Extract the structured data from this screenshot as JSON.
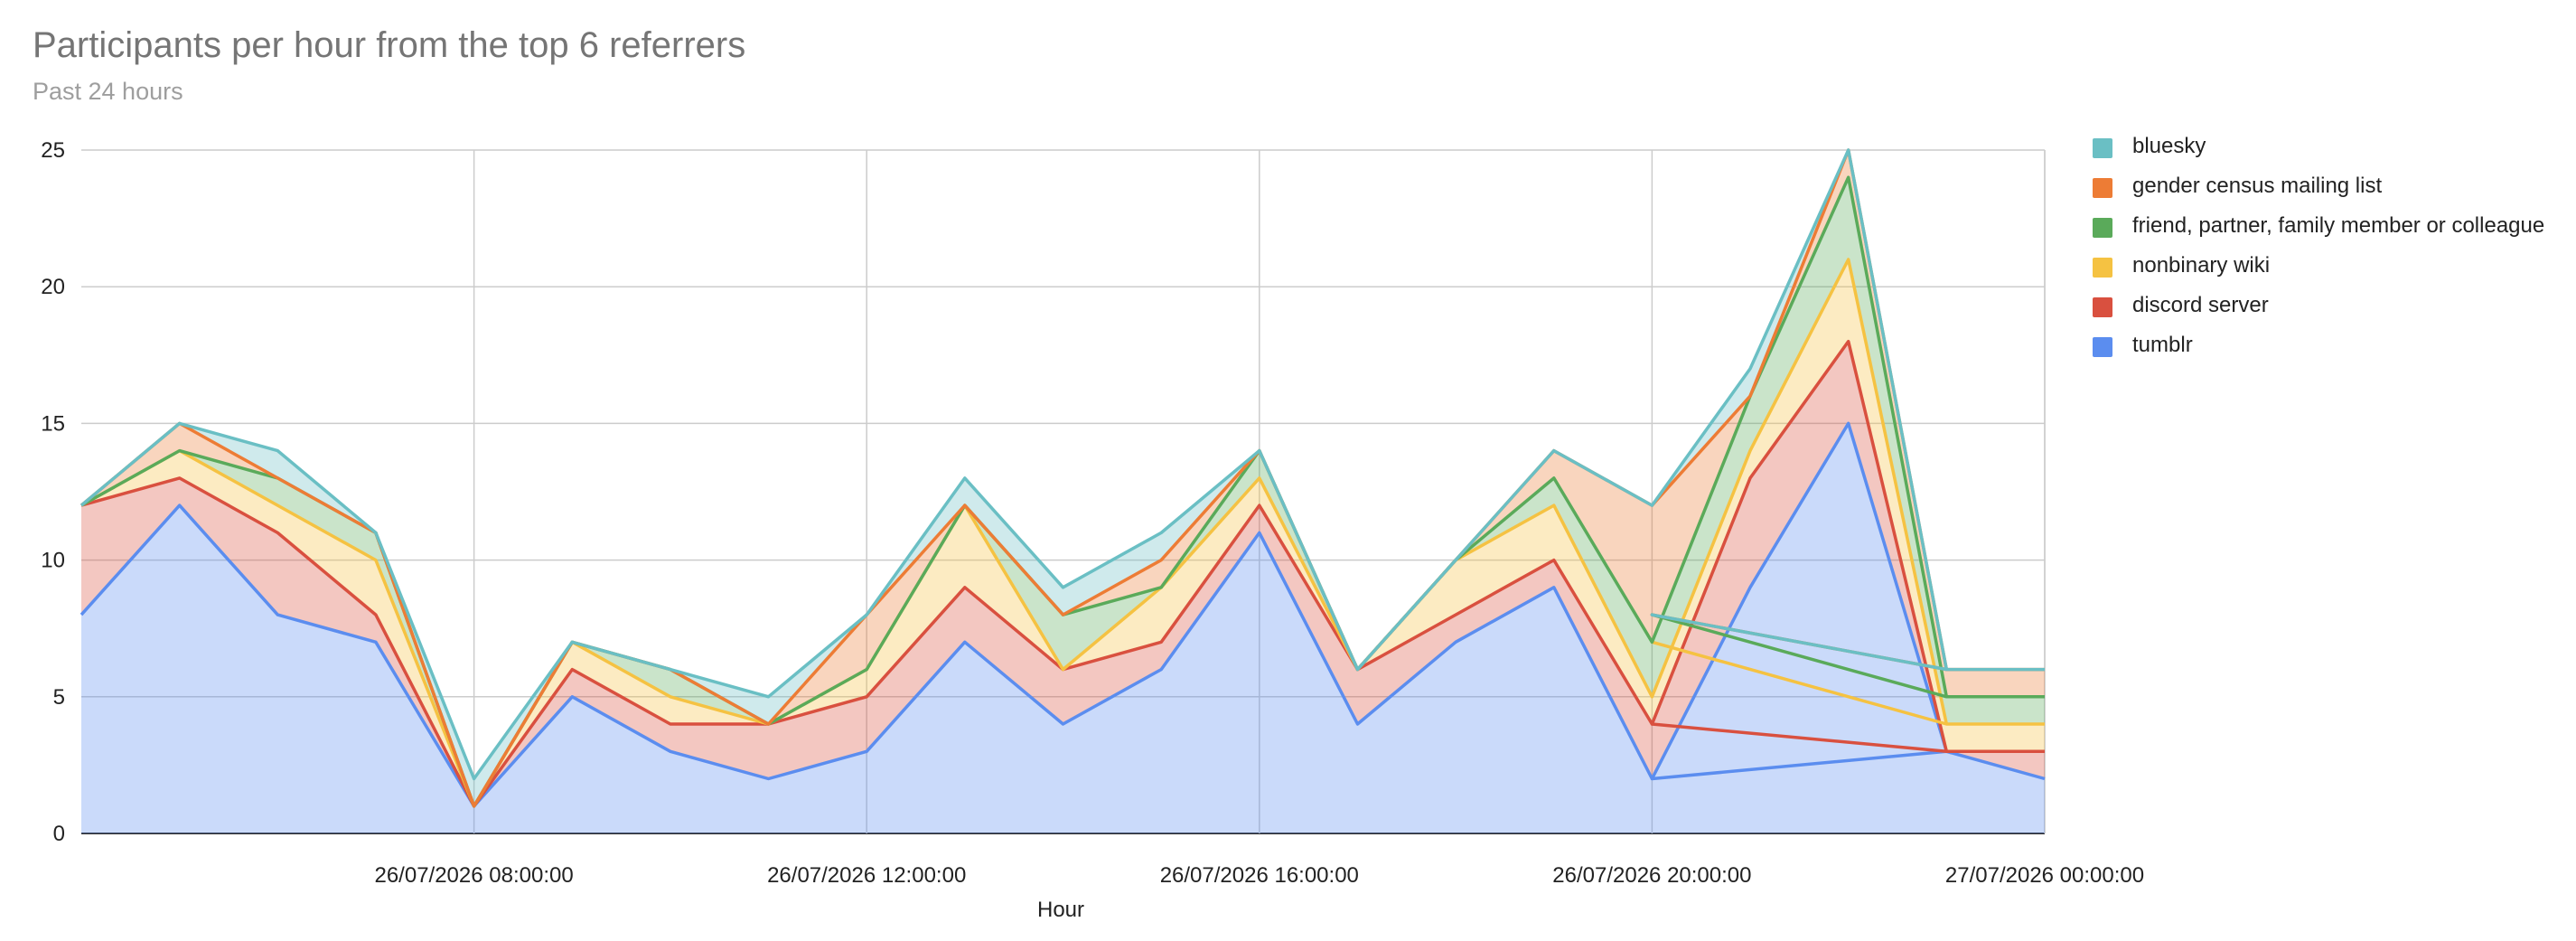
{
  "chart_data": {
    "type": "area",
    "title": "Participants per hour from the top 6 referrers",
    "subtitle": "Past 24 hours",
    "xlabel": "Hour",
    "ylabel": "",
    "stacked": true,
    "ylim": [
      0,
      25
    ],
    "y_ticks": [
      0,
      5,
      10,
      15,
      20,
      25
    ],
    "xlim": [
      "26/07/2026 04:00:00",
      "27/07/2026 00:00:00"
    ],
    "x_ticks": [
      "26/07/2026 08:00:00",
      "26/07/2026 12:00:00",
      "26/07/2026 16:00:00",
      "26/07/2026 20:00:00",
      "27/07/2026 00:00:00"
    ],
    "grid": true,
    "legend_position": "right",
    "x": [
      "26/07/2026 04:00:00",
      "26/07/2026 05:00:00",
      "26/07/2026 06:00:00",
      "26/07/2026 07:00:00",
      "26/07/2026 08:00:00",
      "26/07/2026 09:00:00",
      "26/07/2026 10:00:00",
      "26/07/2026 11:00:00",
      "26/07/2026 12:00:00",
      "26/07/2026 13:00:00",
      "26/07/2026 14:00:00",
      "26/07/2026 15:00:00",
      "26/07/2026 16:00:00",
      "26/07/2026 17:00:00",
      "26/07/2026 18:00:00",
      "26/07/2026 19:00:00",
      "26/07/2026 20:00:00",
      "26/07/2026 21:00:00",
      "26/07/2026 22:00:00",
      "26/07/2026 23:00:00",
      "26/07/2026 20:00:00",
      "26/07/2026 23:00:00",
      "27/07/2026 00:00:00"
    ],
    "series": [
      {
        "name": "bluesky",
        "color": "#6ABFC4",
        "values": [
          0,
          0,
          1,
          0,
          1,
          0,
          0,
          1,
          0,
          1,
          1,
          1,
          0,
          0,
          0,
          0,
          0,
          1,
          0,
          0,
          0,
          0,
          0
        ]
      },
      {
        "name": "gender census mailing list",
        "color": "#ED7C35",
        "values": [
          0,
          1,
          0,
          0,
          0,
          0,
          0,
          0,
          2,
          0,
          0,
          1,
          0,
          0,
          0,
          1,
          5,
          0,
          1,
          1,
          0,
          1,
          1
        ]
      },
      {
        "name": "friend, partner, family member or colleague",
        "color": "#5AAA5A",
        "values": [
          0,
          0,
          1,
          1,
          0,
          0,
          1,
          0,
          0,
          0,
          2,
          0,
          1,
          0,
          0,
          1,
          2,
          2,
          3,
          1,
          1,
          1,
          1
        ]
      },
      {
        "name": "nonbinary wiki",
        "color": "#F5C242",
        "values": [
          0,
          1,
          1,
          2,
          0,
          1,
          1,
          0,
          1,
          3,
          0,
          2,
          1,
          0,
          2,
          2,
          1,
          1,
          3,
          1,
          3,
          1,
          1
        ]
      },
      {
        "name": "discord server",
        "color": "#D9503F",
        "values": [
          4,
          1,
          3,
          1,
          0,
          1,
          1,
          2,
          2,
          2,
          2,
          1,
          1,
          2,
          1,
          1,
          2,
          4,
          3,
          0,
          2,
          0,
          1
        ]
      },
      {
        "name": "tumblr",
        "color": "#5B8DEF",
        "values": [
          8,
          12,
          8,
          7,
          1,
          5,
          3,
          2,
          3,
          7,
          4,
          6,
          11,
          4,
          7,
          9,
          2,
          9,
          15,
          3,
          2,
          3,
          2
        ]
      }
    ]
  }
}
